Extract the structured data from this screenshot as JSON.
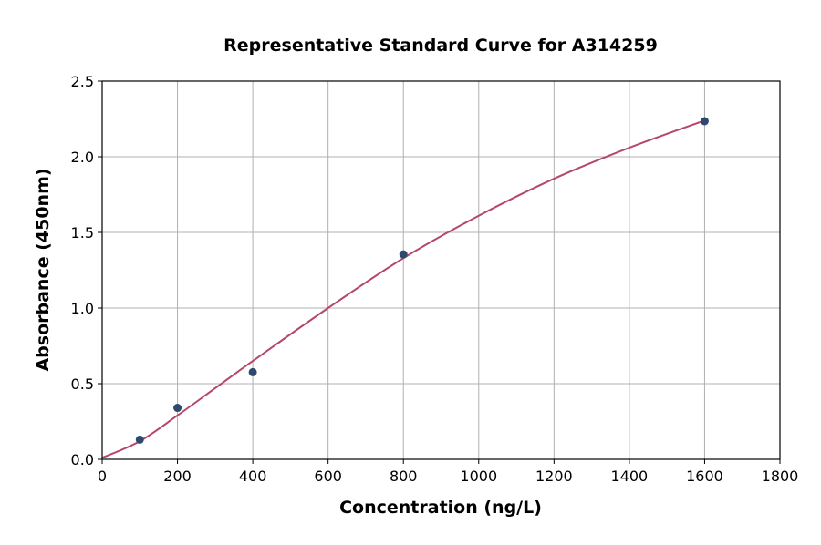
{
  "chart_data": {
    "type": "scatter",
    "title": "Representative Standard Curve for A314259",
    "xlabel": "Concentration (ng/L)",
    "ylabel": "Absorbance (450nm)",
    "xlim": [
      0,
      1800
    ],
    "ylim": [
      0,
      2.5
    ],
    "xticks": [
      0,
      200,
      400,
      600,
      800,
      1000,
      1200,
      1400,
      1600,
      1800
    ],
    "yticks": [
      "0.0",
      "0.5",
      "1.0",
      "1.5",
      "2.0",
      "2.5"
    ],
    "grid": true,
    "points": {
      "x": [
        100,
        200,
        400,
        800,
        1600
      ],
      "y": [
        0.13,
        0.34,
        0.576,
        1.355,
        2.235
      ]
    },
    "fit_curve": {
      "x": [
        0,
        100,
        200,
        300,
        400,
        600,
        800,
        1000,
        1200,
        1400,
        1600
      ],
      "y": [
        0.01,
        0.12,
        0.29,
        0.47,
        0.65,
        1.0,
        1.33,
        1.61,
        1.855,
        2.06,
        2.24
      ]
    },
    "colors": {
      "points": "#2d4a6e",
      "curve": "#b5476b",
      "grid": "#b0b0b0"
    }
  }
}
